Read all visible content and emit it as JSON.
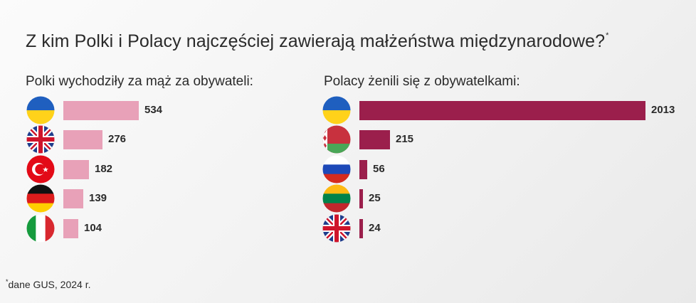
{
  "title": "Z kim Polki i Polacy najczęściej zawierają małżeństwa międzynarodowe?",
  "title_mark": "*",
  "footnote_mark": "*",
  "footnote": "dane GUS, 2024 r.",
  "colors": {
    "left_bar": "#e8a1b8",
    "right_bar": "#9b1f4c"
  },
  "chart_data": [
    {
      "type": "bar",
      "orientation": "horizontal",
      "title": "Polki wychodziły za mąż za obywateli:",
      "categories": [
        "ukraine-flag-icon",
        "uk-flag-icon",
        "turkey-flag-icon",
        "germany-flag-icon",
        "italy-flag-icon"
      ],
      "values": [
        534,
        276,
        182,
        139,
        104
      ],
      "xlim": [
        0,
        2013
      ]
    },
    {
      "type": "bar",
      "orientation": "horizontal",
      "title": "Polacy żenili się z obywatelkami:",
      "categories": [
        "ukraine-flag-icon",
        "belarus-flag-icon",
        "russia-flag-icon",
        "lithuania-flag-icon",
        "uk-flag-icon"
      ],
      "values": [
        2013,
        215,
        56,
        25,
        24
      ],
      "xlim": [
        0,
        2013
      ]
    }
  ]
}
